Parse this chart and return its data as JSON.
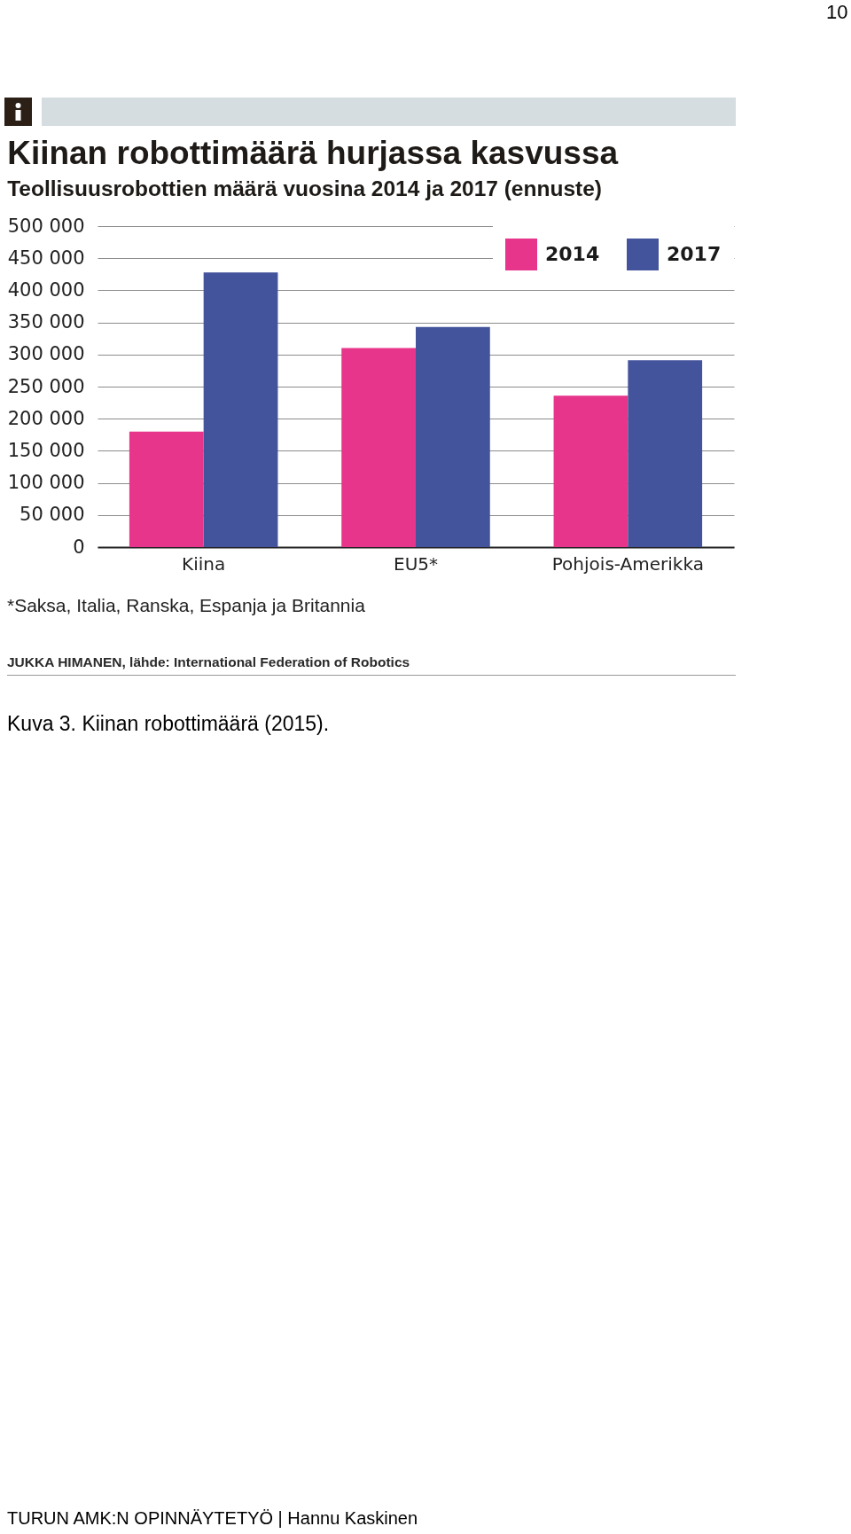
{
  "chart_data": {
    "type": "bar",
    "title": "Kiinan robottimäärä hurjassa kasvussa",
    "subtitle": "Teollisuusrobottien määrä vuosina 2014 ja 2017 (ennuste)",
    "categories": [
      "Kiina",
      "EU5*",
      "Pohjois-Amerikka"
    ],
    "series": [
      {
        "name": "2014",
        "color": "#e6358b",
        "values": [
          180000,
          310000,
          236000
        ]
      },
      {
        "name": "2017",
        "color": "#44549c",
        "values": [
          428000,
          343000,
          291000
        ]
      }
    ],
    "ylim": [
      0,
      500000
    ],
    "yticks": [
      0,
      {
        "value": 50000,
        "label": "50 000"
      },
      {
        "value": 100000,
        "label": "100 000"
      },
      {
        "value": 150000,
        "label": "150 000"
      },
      {
        "value": 200000,
        "label": "200 000"
      },
      {
        "value": 250000,
        "label": "250 000"
      },
      {
        "value": 300000,
        "label": "300 000"
      },
      {
        "value": 350000,
        "label": "350 000"
      },
      {
        "value": 400000,
        "label": "400 000"
      },
      {
        "value": 450000,
        "label": "450 000"
      },
      {
        "value": 500000,
        "label": "500 000"
      }
    ],
    "grid": "y",
    "legend": "top right",
    "annotations": [
      "*Saksa, Italia, Ranska, Espanja ja Britannia",
      "JUKKA HIMANEN, lähde: International Federation of Robotics",
      "Kuva 3. Kiinan robottimäärä (2015).",
      "10",
      "TURUN AMK:N OPINNÄYTETYÖ | Hannu Kaskinen"
    ]
  }
}
